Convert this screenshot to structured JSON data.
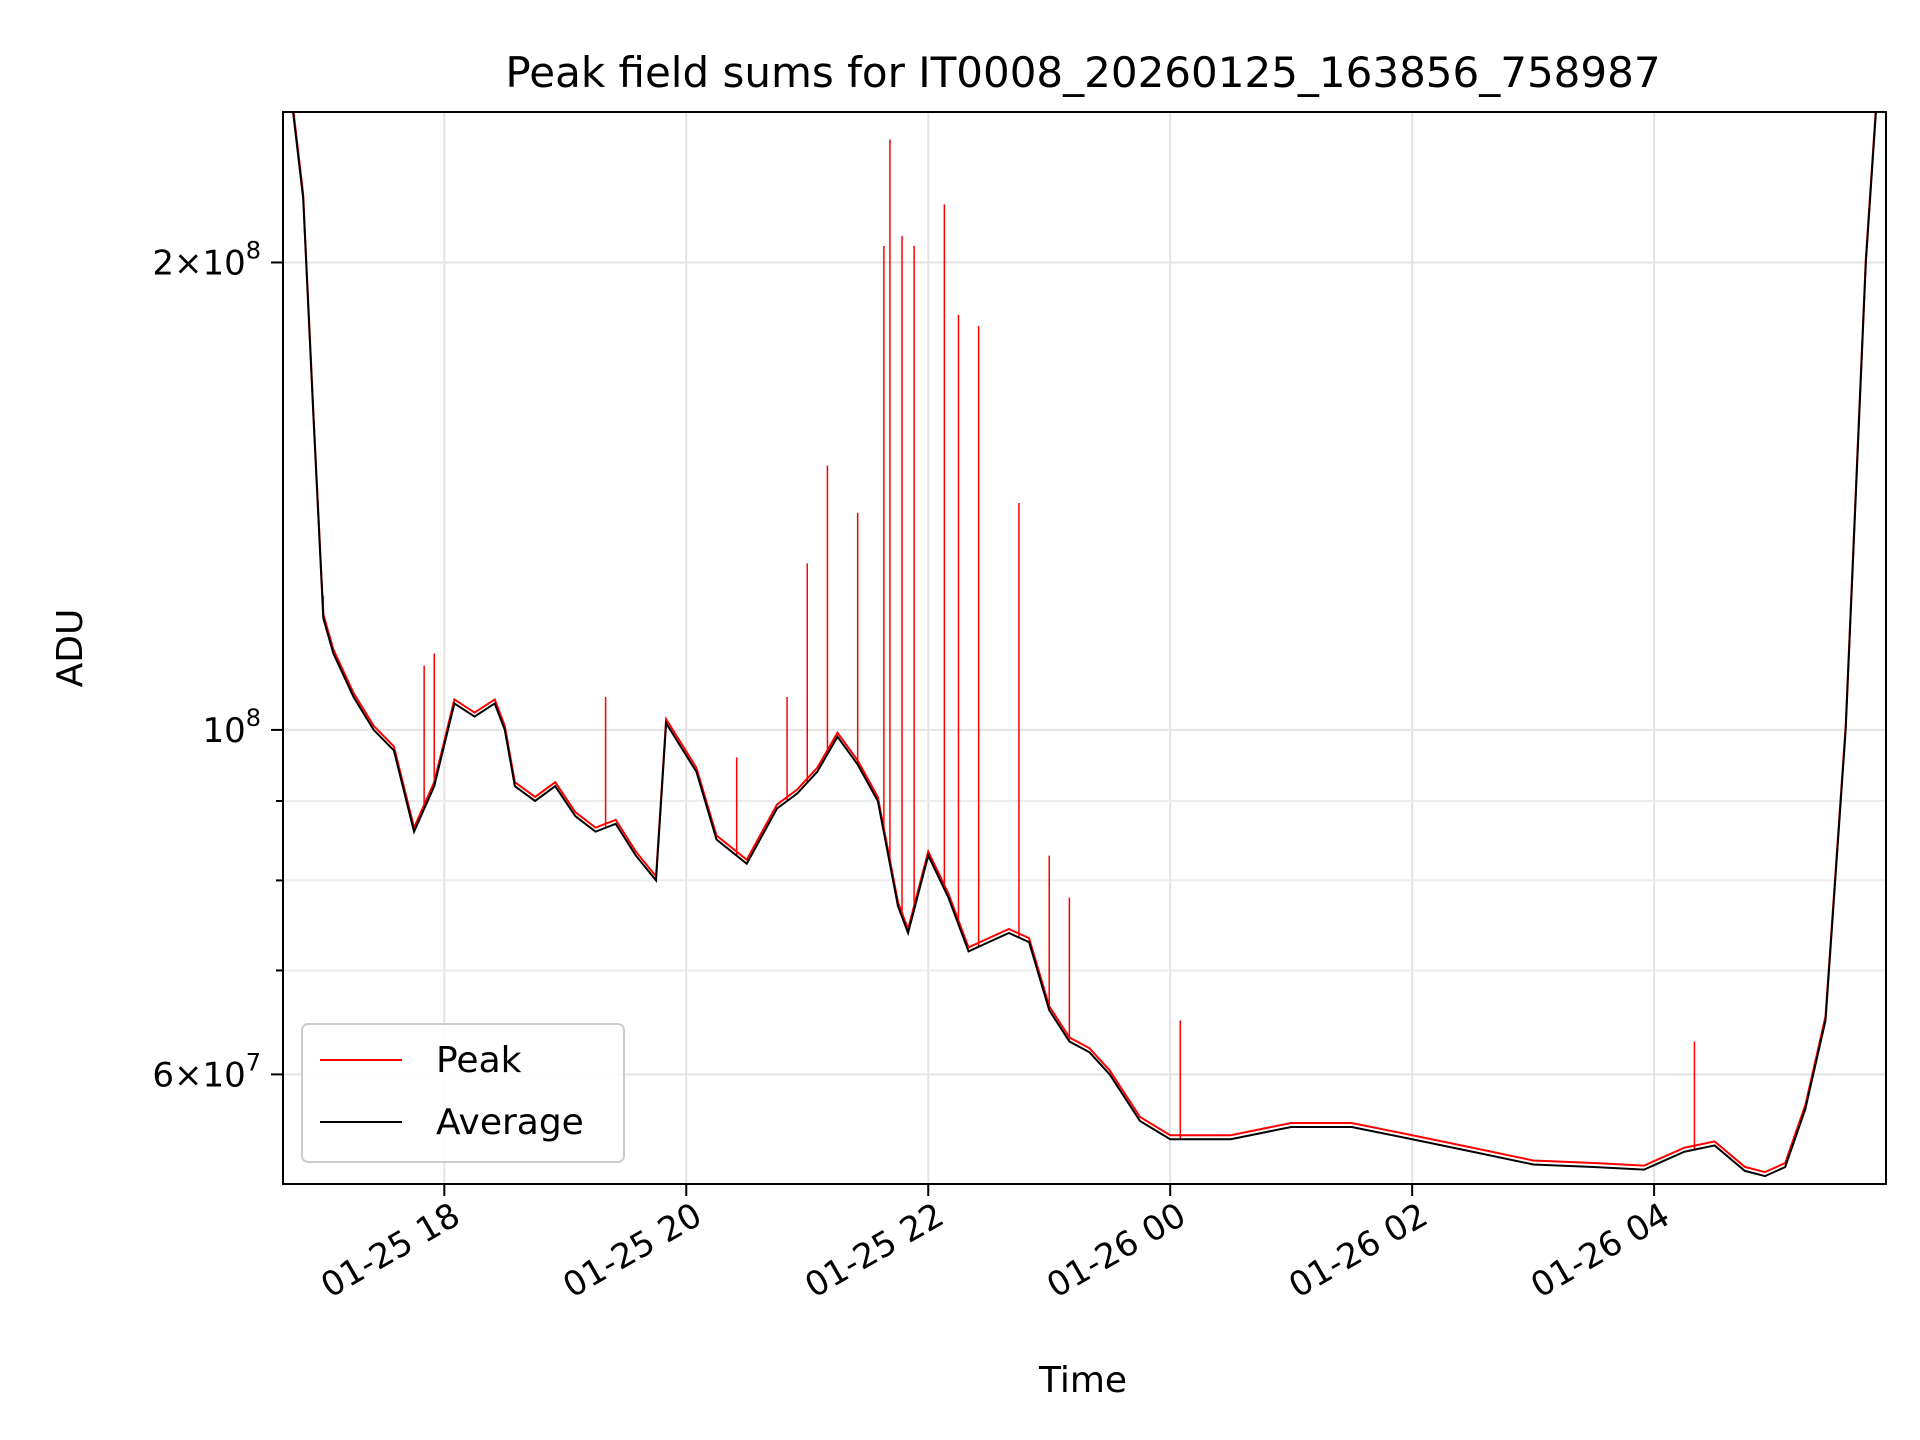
{
  "chart_data": {
    "type": "line",
    "title": "Peak field sums for IT0008_20260125_163856_758987",
    "xlabel": "Time",
    "ylabel": "ADU",
    "yscale": "log",
    "ylim": [
      51000000,
      250000000
    ],
    "xlim": [
      "2026-01-25T16:40",
      "2026-01-26T05:55"
    ],
    "grid": true,
    "legend_placement": "lower-left",
    "colors": {
      "peak": "#ff0000",
      "average": "#000000"
    },
    "x_ticks": [
      {
        "t": "2026-01-25T18:00",
        "label": "01-25 18"
      },
      {
        "t": "2026-01-25T20:00",
        "label": "01-25 20"
      },
      {
        "t": "2026-01-25T22:00",
        "label": "01-25 22"
      },
      {
        "t": "2026-01-26T00:00",
        "label": "01-26 00"
      },
      {
        "t": "2026-01-26T02:00",
        "label": "01-26 02"
      },
      {
        "t": "2026-01-26T04:00",
        "label": "01-26 04"
      }
    ],
    "y_ticks_major": [
      {
        "value": 60000000,
        "mantissa": "6",
        "exponent": "7"
      },
      {
        "value": 100000000,
        "mantissa": "",
        "exponent": "8"
      },
      {
        "value": 200000000,
        "mantissa": "2",
        "exponent": "8"
      }
    ],
    "y_ticks_minor": [
      70000000,
      80000000,
      90000000
    ],
    "series": [
      {
        "name": "Peak",
        "color": "#ff0000",
        "spikes": [
          {
            "t": "2026-01-25T17:00",
            "y": 122000000
          },
          {
            "t": "2026-01-25T17:50",
            "y": 110000000
          },
          {
            "t": "2026-01-25T17:55",
            "y": 112000000
          },
          {
            "t": "2026-01-25T19:20",
            "y": 105000000
          },
          {
            "t": "2026-01-25T20:25",
            "y": 96000000
          },
          {
            "t": "2026-01-25T20:50",
            "y": 105000000
          },
          {
            "t": "2026-01-25T21:00",
            "y": 128000000
          },
          {
            "t": "2026-01-25T21:10",
            "y": 148000000
          },
          {
            "t": "2026-01-25T21:25",
            "y": 138000000
          },
          {
            "t": "2026-01-25T21:38",
            "y": 205000000
          },
          {
            "t": "2026-01-25T21:41",
            "y": 240000000
          },
          {
            "t": "2026-01-25T21:47",
            "y": 208000000
          },
          {
            "t": "2026-01-25T21:53",
            "y": 205000000
          },
          {
            "t": "2026-01-25T22:08",
            "y": 218000000
          },
          {
            "t": "2026-01-25T22:15",
            "y": 185000000
          },
          {
            "t": "2026-01-25T22:25",
            "y": 182000000
          },
          {
            "t": "2026-01-25T22:45",
            "y": 140000000
          },
          {
            "t": "2026-01-25T23:00",
            "y": 83000000
          },
          {
            "t": "2026-01-25T23:10",
            "y": 78000000
          },
          {
            "t": "2026-01-26T00:05",
            "y": 65000000
          },
          {
            "t": "2026-01-26T04:20",
            "y": 63000000
          }
        ]
      },
      {
        "name": "Average",
        "color": "#000000",
        "x": [
          "2026-01-25T16:45",
          "2026-01-25T16:50",
          "2026-01-25T16:55",
          "2026-01-25T17:00",
          "2026-01-25T17:05",
          "2026-01-25T17:15",
          "2026-01-25T17:25",
          "2026-01-25T17:35",
          "2026-01-25T17:45",
          "2026-01-25T17:55",
          "2026-01-25T18:05",
          "2026-01-25T18:15",
          "2026-01-25T18:25",
          "2026-01-25T18:30",
          "2026-01-25T18:35",
          "2026-01-25T18:45",
          "2026-01-25T18:55",
          "2026-01-25T19:05",
          "2026-01-25T19:15",
          "2026-01-25T19:25",
          "2026-01-25T19:35",
          "2026-01-25T19:45",
          "2026-01-25T19:50",
          "2026-01-25T20:05",
          "2026-01-25T20:15",
          "2026-01-25T20:30",
          "2026-01-25T20:45",
          "2026-01-25T20:55",
          "2026-01-25T21:05",
          "2026-01-25T21:15",
          "2026-01-25T21:25",
          "2026-01-25T21:35",
          "2026-01-25T21:45",
          "2026-01-25T21:50",
          "2026-01-25T22:00",
          "2026-01-25T22:10",
          "2026-01-25T22:20",
          "2026-01-25T22:30",
          "2026-01-25T22:40",
          "2026-01-25T22:50",
          "2026-01-25T23:00",
          "2026-01-25T23:10",
          "2026-01-25T23:20",
          "2026-01-25T23:30",
          "2026-01-25T23:45",
          "2026-01-26T00:00",
          "2026-01-26T00:30",
          "2026-01-26T01:00",
          "2026-01-26T01:30",
          "2026-01-26T02:00",
          "2026-01-26T02:30",
          "2026-01-26T03:00",
          "2026-01-26T03:30",
          "2026-01-26T03:55",
          "2026-01-26T04:15",
          "2026-01-26T04:30",
          "2026-01-26T04:45",
          "2026-01-26T04:55",
          "2026-01-26T05:05",
          "2026-01-26T05:15",
          "2026-01-26T05:25",
          "2026-01-26T05:35",
          "2026-01-26T05:45",
          "2026-01-26T05:50"
        ],
        "values": [
          250000000,
          220000000,
          160000000,
          118000000,
          112000000,
          105000000,
          100000000,
          97000000,
          86000000,
          92000000,
          104000000,
          102000000,
          104000000,
          100000000,
          92000000,
          90000000,
          92000000,
          88000000,
          86000000,
          87000000,
          83000000,
          80000000,
          101000000,
          94000000,
          85000000,
          82000000,
          89000000,
          91000000,
          94000000,
          99000000,
          95000000,
          90000000,
          77000000,
          74000000,
          83000000,
          78000000,
          72000000,
          73000000,
          74000000,
          73000000,
          66000000,
          63000000,
          62000000,
          60000000,
          56000000,
          54500000,
          54500000,
          55500000,
          55500000,
          54500000,
          53500000,
          52500000,
          52300000,
          52100000,
          53500000,
          54000000,
          52000000,
          51600000,
          52300000,
          57000000,
          65000000,
          100000000,
          200000000,
          250000000
        ]
      }
    ]
  }
}
